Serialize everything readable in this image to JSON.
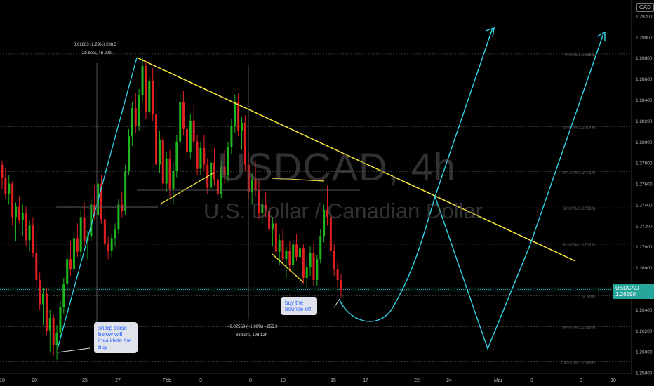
{
  "watermark": {
    "symbol": "USDCAD, 4h",
    "name": "U.S. Dollar / Canadian Dollar"
  },
  "currency_badge": "CAD",
  "price_tag": "USDCAD · 1.26590",
  "notes": {
    "invalidate": "sharp close below will invalidate the buy",
    "bounce": "buy the bounce off"
  },
  "measure_up": {
    "line1": "0.02883 (2.29%) 288.3",
    "line2": "29 bars, 4d 20h"
  },
  "measure_down": {
    "line1": "−0.02559 (−1.99%) −255.9",
    "line2": "83 bars, 19d 12h"
  },
  "colors": {
    "up": "#26a69a",
    "bull": "#1fb51f",
    "bear": "#e02020",
    "trend": "#ffeb3b",
    "path": "#33d6e8",
    "price": "#26a69a"
  },
  "chart_data": {
    "type": "candlestick",
    "title": "USDCAD, 4h",
    "subtitle": "U.S. Dollar / Canadian Dollar",
    "y_axis": {
      "ticks": [
        1.292,
        1.29,
        1.288,
        1.286,
        1.284,
        1.282,
        1.28,
        1.278,
        1.276,
        1.274,
        1.272,
        1.27,
        1.268,
        1.266,
        1.264,
        1.262,
        1.26,
        1.258
      ],
      "ylim": [
        1.2567,
        1.2935
      ]
    },
    "x_axis": {
      "labels": [
        "18",
        "20",
        "25",
        "27",
        "Feb",
        "3",
        "8",
        "10",
        "15",
        "17",
        "22",
        "24",
        "Mar",
        "3",
        "8",
        "10"
      ]
    },
    "fib_levels": [
      {
        "label": "0.00%(1.28836)",
        "value": 1.28836
      },
      {
        "label": "23.60%(1.28143)",
        "value": 1.28143
      },
      {
        "label": "38.20%(1.27715)",
        "value": 1.27715
      },
      {
        "label": "50.00%(1.27368)",
        "value": 1.27368
      },
      {
        "label": "61.80%(1.27022)",
        "value": 1.27022
      },
      {
        "label": "78.60%",
        "value": 1.26529
      },
      {
        "label": "88.60%(1.26235)",
        "value": 1.26235
      },
      {
        "label": "100.00%(1.25901)",
        "value": 1.25901
      }
    ],
    "current_price": 1.2659,
    "candles": [
      [
        1.2778,
        1.2782,
        1.2755,
        1.2765
      ],
      [
        1.2765,
        1.2775,
        1.2745,
        1.275
      ],
      [
        1.275,
        1.2768,
        1.274,
        1.276
      ],
      [
        1.276,
        1.2762,
        1.272,
        1.2728
      ],
      [
        1.2728,
        1.2742,
        1.2705,
        1.2738
      ],
      [
        1.2738,
        1.2748,
        1.2722,
        1.2725
      ],
      [
        1.2725,
        1.274,
        1.271,
        1.2732
      ],
      [
        1.2732,
        1.2738,
        1.27,
        1.2706
      ],
      [
        1.2706,
        1.2725,
        1.2695,
        1.272
      ],
      [
        1.272,
        1.2728,
        1.269,
        1.2694
      ],
      [
        1.2694,
        1.2702,
        1.266,
        1.2668
      ],
      [
        1.2668,
        1.2675,
        1.264,
        1.2645
      ],
      [
        1.2645,
        1.266,
        1.2625,
        1.2655
      ],
      [
        1.2655,
        1.266,
        1.2615,
        1.262
      ],
      [
        1.262,
        1.264,
        1.26,
        1.2632
      ],
      [
        1.2632,
        1.2636,
        1.2596,
        1.2606
      ],
      [
        1.2606,
        1.2625,
        1.2592,
        1.2618
      ],
      [
        1.2618,
        1.2648,
        1.2612,
        1.2642
      ],
      [
        1.2642,
        1.267,
        1.2636,
        1.2664
      ],
      [
        1.2664,
        1.2695,
        1.2658,
        1.2688
      ],
      [
        1.2688,
        1.2705,
        1.2672,
        1.2678
      ],
      [
        1.2678,
        1.2715,
        1.2674,
        1.2708
      ],
      [
        1.2708,
        1.2722,
        1.269,
        1.2695
      ],
      [
        1.2695,
        1.2735,
        1.269,
        1.2728
      ],
      [
        1.2728,
        1.2742,
        1.27,
        1.2705
      ],
      [
        1.2705,
        1.2715,
        1.2688,
        1.271
      ],
      [
        1.271,
        1.2745,
        1.2705,
        1.274
      ],
      [
        1.274,
        1.2758,
        1.2725,
        1.273
      ],
      [
        1.273,
        1.2765,
        1.2726,
        1.276
      ],
      [
        1.276,
        1.2768,
        1.2722,
        1.2726
      ],
      [
        1.2726,
        1.2735,
        1.2698,
        1.2702
      ],
      [
        1.2702,
        1.271,
        1.2688,
        1.2696
      ],
      [
        1.2696,
        1.2712,
        1.269,
        1.2708
      ],
      [
        1.2708,
        1.2722,
        1.27,
        1.2716
      ],
      [
        1.2716,
        1.2745,
        1.2712,
        1.274
      ],
      [
        1.274,
        1.2752,
        1.2728,
        1.2734
      ],
      [
        1.2734,
        1.2778,
        1.273,
        1.2772
      ],
      [
        1.2772,
        1.2812,
        1.2768,
        1.2805
      ],
      [
        1.2805,
        1.2838,
        1.2796,
        1.2832
      ],
      [
        1.2832,
        1.2846,
        1.2808,
        1.2815
      ],
      [
        1.2815,
        1.285,
        1.281,
        1.2844
      ],
      [
        1.2844,
        1.288,
        1.2838,
        1.2872
      ],
      [
        1.2872,
        1.2878,
        1.2822,
        1.2828
      ],
      [
        1.2828,
        1.2862,
        1.2825,
        1.2858
      ],
      [
        1.2858,
        1.287,
        1.282,
        1.2826
      ],
      [
        1.2826,
        1.2834,
        1.277,
        1.2778
      ],
      [
        1.2778,
        1.281,
        1.277,
        1.2802
      ],
      [
        1.2802,
        1.2808,
        1.2755,
        1.276
      ],
      [
        1.276,
        1.279,
        1.2752,
        1.2784
      ],
      [
        1.2784,
        1.2792,
        1.2748,
        1.2755
      ],
      [
        1.2755,
        1.278,
        1.274,
        1.2772
      ],
      [
        1.2772,
        1.2806,
        1.2766,
        1.28
      ],
      [
        1.28,
        1.2845,
        1.2795,
        1.2838
      ],
      [
        1.2838,
        1.2848,
        1.2806,
        1.2812
      ],
      [
        1.2812,
        1.282,
        1.2785,
        1.279
      ],
      [
        1.279,
        1.2826,
        1.2784,
        1.282
      ],
      [
        1.282,
        1.2835,
        1.2795,
        1.28
      ],
      [
        1.28,
        1.2806,
        1.2768,
        1.2774
      ],
      [
        1.2774,
        1.28,
        1.2768,
        1.2794
      ],
      [
        1.2794,
        1.2806,
        1.2772,
        1.2778
      ],
      [
        1.2778,
        1.2784,
        1.275,
        1.2756
      ],
      [
        1.2756,
        1.2785,
        1.2752,
        1.278
      ],
      [
        1.278,
        1.2794,
        1.2758,
        1.2764
      ],
      [
        1.2764,
        1.2772,
        1.2745,
        1.275
      ],
      [
        1.275,
        1.2782,
        1.2746,
        1.2776
      ],
      [
        1.2776,
        1.2792,
        1.276,
        1.2768
      ],
      [
        1.2768,
        1.28,
        1.2762,
        1.2795
      ],
      [
        1.2795,
        1.2822,
        1.2788,
        1.2815
      ],
      [
        1.2815,
        1.2845,
        1.2808,
        1.2838
      ],
      [
        1.2838,
        1.2846,
        1.2805,
        1.281
      ],
      [
        1.281,
        1.2824,
        1.2792,
        1.2818
      ],
      [
        1.2818,
        1.2825,
        1.2772,
        1.2778
      ],
      [
        1.2778,
        1.279,
        1.2745,
        1.2752
      ],
      [
        1.2752,
        1.277,
        1.274,
        1.2764
      ],
      [
        1.2764,
        1.2782,
        1.2748,
        1.2754
      ],
      [
        1.2754,
        1.2764,
        1.2726,
        1.2732
      ],
      [
        1.2732,
        1.2746,
        1.2722,
        1.274
      ],
      [
        1.274,
        1.2752,
        1.2728,
        1.2734
      ],
      [
        1.2734,
        1.2742,
        1.271,
        1.2716
      ],
      [
        1.2716,
        1.2728,
        1.27,
        1.2722
      ],
      [
        1.2722,
        1.273,
        1.269,
        1.2695
      ],
      [
        1.2695,
        1.2712,
        1.2682,
        1.2706
      ],
      [
        1.2706,
        1.2716,
        1.2684,
        1.2688
      ],
      [
        1.2688,
        1.27,
        1.267,
        1.2696
      ],
      [
        1.2696,
        1.2705,
        1.2676,
        1.2682
      ],
      [
        1.2682,
        1.2708,
        1.2676,
        1.2702
      ],
      [
        1.2702,
        1.2712,
        1.2686,
        1.269
      ],
      [
        1.269,
        1.2704,
        1.2672,
        1.2698
      ],
      [
        1.2698,
        1.2702,
        1.2664,
        1.267
      ],
      [
        1.267,
        1.2686,
        1.266,
        1.268
      ],
      [
        1.268,
        1.27,
        1.2672,
        1.2694
      ],
      [
        1.2694,
        1.2702,
        1.2662,
        1.2668
      ],
      [
        1.2668,
        1.2692,
        1.2662,
        1.2688
      ],
      [
        1.2688,
        1.2716,
        1.2684,
        1.271
      ],
      [
        1.271,
        1.274,
        1.2704,
        1.2735
      ],
      [
        1.2735,
        1.2758,
        1.272,
        1.2728
      ],
      [
        1.2728,
        1.2734,
        1.269,
        1.2696
      ],
      [
        1.2696,
        1.2702,
        1.2672,
        1.2678
      ],
      [
        1.2678,
        1.2686,
        1.266,
        1.2668
      ],
      [
        1.2668,
        1.2674,
        1.2652,
        1.2659
      ]
    ]
  }
}
